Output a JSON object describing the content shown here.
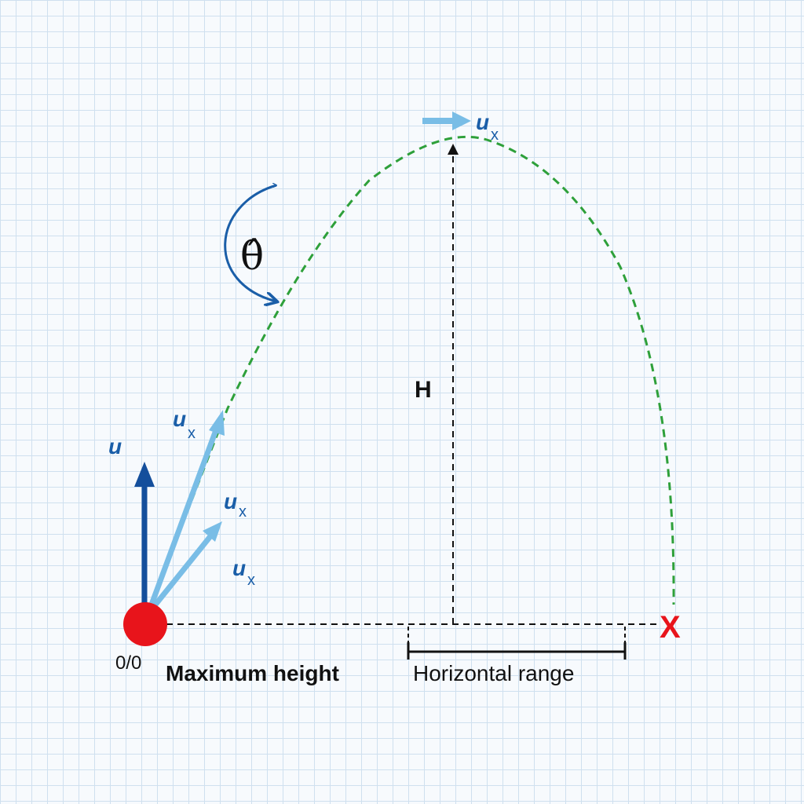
{
  "labels": {
    "u_vertical": "u",
    "u_top": "u",
    "u_top_sub": "x",
    "u_mid": "u",
    "u_mid_sub": "x",
    "u_low": "u",
    "u_low_sub": "x",
    "u_peak": "u",
    "u_peak_sub": "x",
    "angle": "θ̂",
    "height": "H",
    "origin": "0/0",
    "landing_mark": "X",
    "max_height_caption": "Maximum height",
    "range_caption": "Horizontal range"
  },
  "colors": {
    "trajectory": "#2ea03a",
    "dark_arrow": "#144f9c",
    "light_arrow": "#79bde6",
    "angle_arc": "#1a5ea8",
    "projectile": "#e8141b",
    "landing": "#e8141b"
  }
}
